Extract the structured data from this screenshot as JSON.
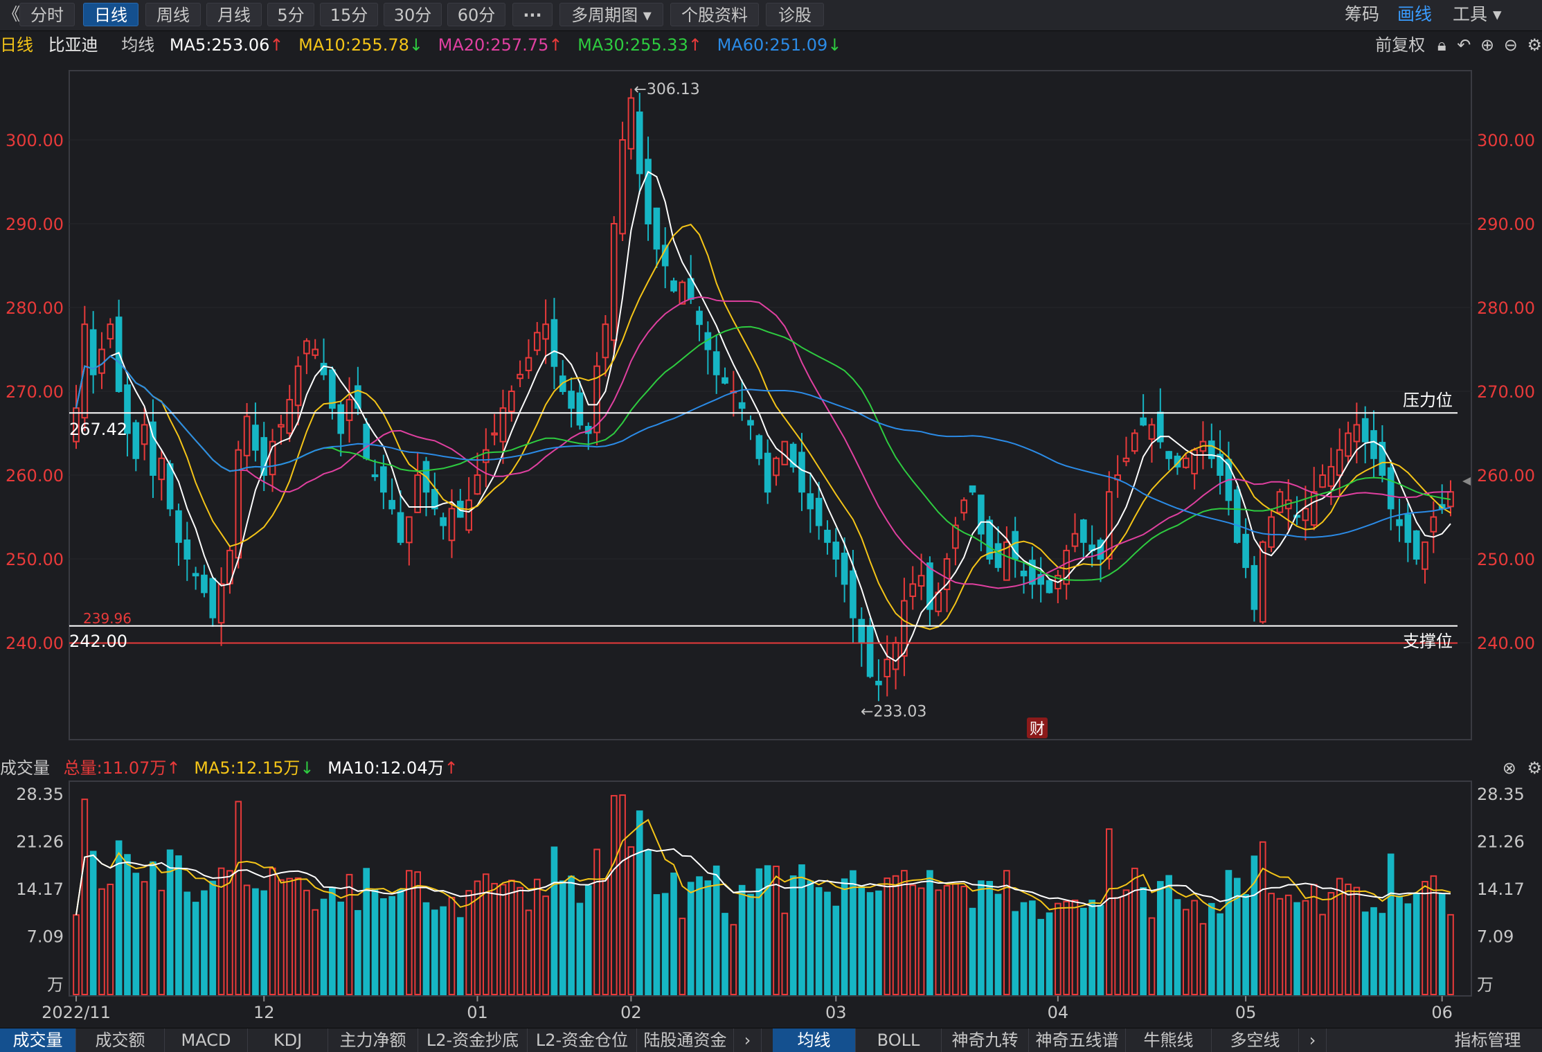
{
  "toolbar": {
    "back": "《",
    "periods": [
      "分时",
      "日线",
      "周线",
      "月线",
      "5分",
      "15分",
      "30分",
      "60分"
    ],
    "active_period": "日线",
    "more": "···",
    "multi_period": "多周期图",
    "stock_info": "个股资料",
    "diagnose": "诊股",
    "right": {
      "chips": "筹码",
      "draw": "画线",
      "tools": "工具"
    }
  },
  "legend": {
    "period": "日线",
    "stock": "比亚迪",
    "ma_label": "均线",
    "ma5": "MA5:253.06",
    "ma10": "MA10:255.78",
    "ma20": "MA20:257.75",
    "ma30": "MA30:255.33",
    "ma60": "MA60:251.09",
    "restore": "前复权"
  },
  "vol_legend": {
    "title": "成交量",
    "total": "总量:11.07万",
    "ma5": "MA5:12.15万",
    "ma10": "MA10:12.04万"
  },
  "colors": {
    "up": "#e83a3a",
    "down": "#16b6c4",
    "ma5": "#ffffff",
    "ma10": "#f5c518",
    "ma20": "#e040a0",
    "ma30": "#2ecc40",
    "ma60": "#2b8be6"
  },
  "chart_data": {
    "type": "candlestick",
    "price_axis": {
      "ylim": [
        230,
        312
      ],
      "ticks": [
        "240.00",
        "250.00",
        "260.00",
        "270.00",
        "280.00",
        "290.00",
        "300.00"
      ]
    },
    "volume_axis": {
      "ylim": [
        0,
        28.35
      ],
      "ticks": [
        "28.35",
        "21.26",
        "14.17",
        "7.09"
      ],
      "unit": "万"
    },
    "x_labels": [
      {
        "label": "2022/11",
        "index": 0
      },
      {
        "label": "12",
        "index": 22
      },
      {
        "label": "01",
        "index": 47
      },
      {
        "label": "02",
        "index": 65
      },
      {
        "label": "03",
        "index": 89
      },
      {
        "label": "04",
        "index": 115
      },
      {
        "label": "05",
        "index": 137
      },
      {
        "label": "06",
        "index": 160
      }
    ],
    "annotations": {
      "high": "306.13",
      "low": "233.03",
      "resistance": 267.42,
      "resistance_label": "267.42",
      "resistance_text": "压力位",
      "support": 242.0,
      "support_label": "242.00",
      "support_text": "支撑位",
      "red_line": 239.96,
      "red_line_label": "239.96",
      "event": "财"
    },
    "closes": [
      268,
      278,
      272,
      275,
      278,
      270,
      265,
      262,
      266,
      260,
      262,
      256,
      252,
      250,
      248,
      246,
      243,
      247,
      251,
      263,
      267,
      263,
      260,
      264,
      266,
      269,
      273,
      276,
      275,
      272,
      268,
      265,
      269,
      268,
      262,
      260,
      258,
      256,
      252,
      255,
      260,
      258,
      256,
      254,
      256,
      255,
      257,
      260,
      263,
      265,
      268,
      270,
      272,
      274,
      277,
      278,
      273,
      270,
      268,
      266,
      265,
      273,
      278,
      290,
      300,
      305,
      296,
      290,
      287,
      285,
      282,
      283,
      281,
      278,
      275,
      272,
      271,
      270,
      268,
      266,
      262,
      258,
      262,
      264,
      261,
      258,
      256,
      254,
      252,
      250,
      247,
      243,
      240,
      236,
      235,
      238,
      240,
      245,
      247,
      248,
      244,
      246,
      250,
      254,
      257,
      258,
      253,
      250,
      249,
      252,
      250,
      248,
      247,
      247,
      246,
      248,
      251,
      253,
      252,
      251,
      250,
      258,
      260,
      262,
      265,
      266,
      266,
      264,
      262,
      261,
      262,
      263,
      264,
      262,
      260,
      257,
      252,
      249,
      244,
      252,
      255,
      258,
      257,
      255,
      256,
      258,
      260,
      261,
      263,
      265,
      266,
      264,
      262,
      260,
      256,
      254,
      252,
      250,
      252,
      255,
      256,
      258
    ]
  },
  "bottom_tabs": {
    "left": [
      "成交量",
      "成交额",
      "MACD",
      "KDJ",
      "主力净额",
      "L2-资金抄底",
      "L2-资金仓位",
      "陆股通资金"
    ],
    "right": [
      "均线",
      "BOLL",
      "神奇九转",
      "神奇五线谱",
      "牛熊线",
      "多空线"
    ],
    "manage": "指标管理",
    "active_left": "成交量",
    "active_right": "均线"
  }
}
